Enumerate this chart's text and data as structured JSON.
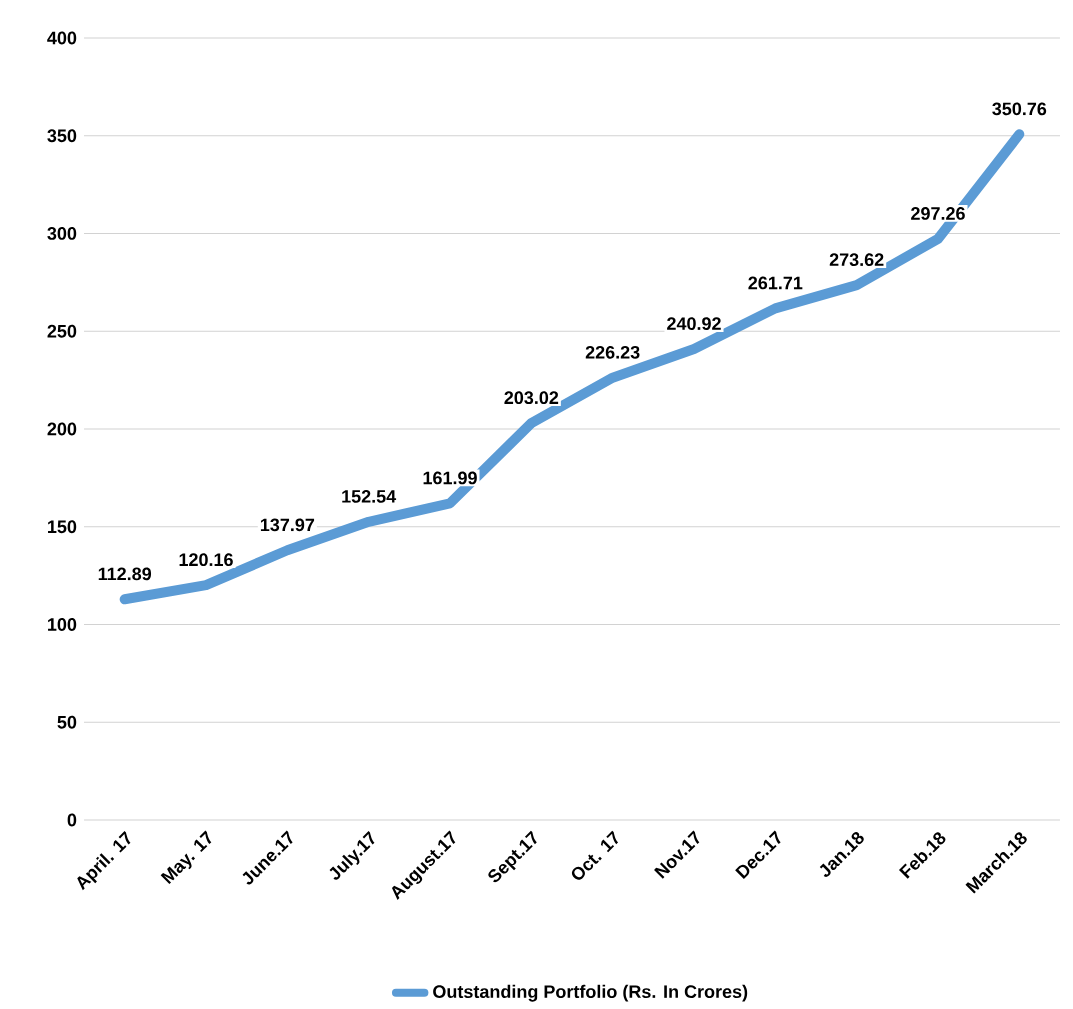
{
  "chart_data": {
    "type": "line",
    "categories": [
      "April. 17",
      "May. 17",
      "June.17",
      "July.17",
      "August.17",
      "Sept.17",
      "Oct. 17",
      "Nov.17",
      "Dec.17",
      "Jan.18",
      "Feb.18",
      "March.18"
    ],
    "series": [
      {
        "name": "Outstanding Portfolio (Rs. In Crores)",
        "color": "#5b9bd5",
        "values": [
          112.89,
          120.16,
          137.97,
          152.54,
          161.99,
          203.02,
          226.23,
          240.92,
          261.71,
          273.62,
          297.26,
          350.76
        ]
      }
    ],
    "ylim": [
      0,
      400
    ],
    "yticks": [
      0,
      50,
      100,
      150,
      200,
      250,
      300,
      350,
      400
    ],
    "grid": "y",
    "legend": "bottom",
    "data_labels": true,
    "line_style": "solid"
  }
}
